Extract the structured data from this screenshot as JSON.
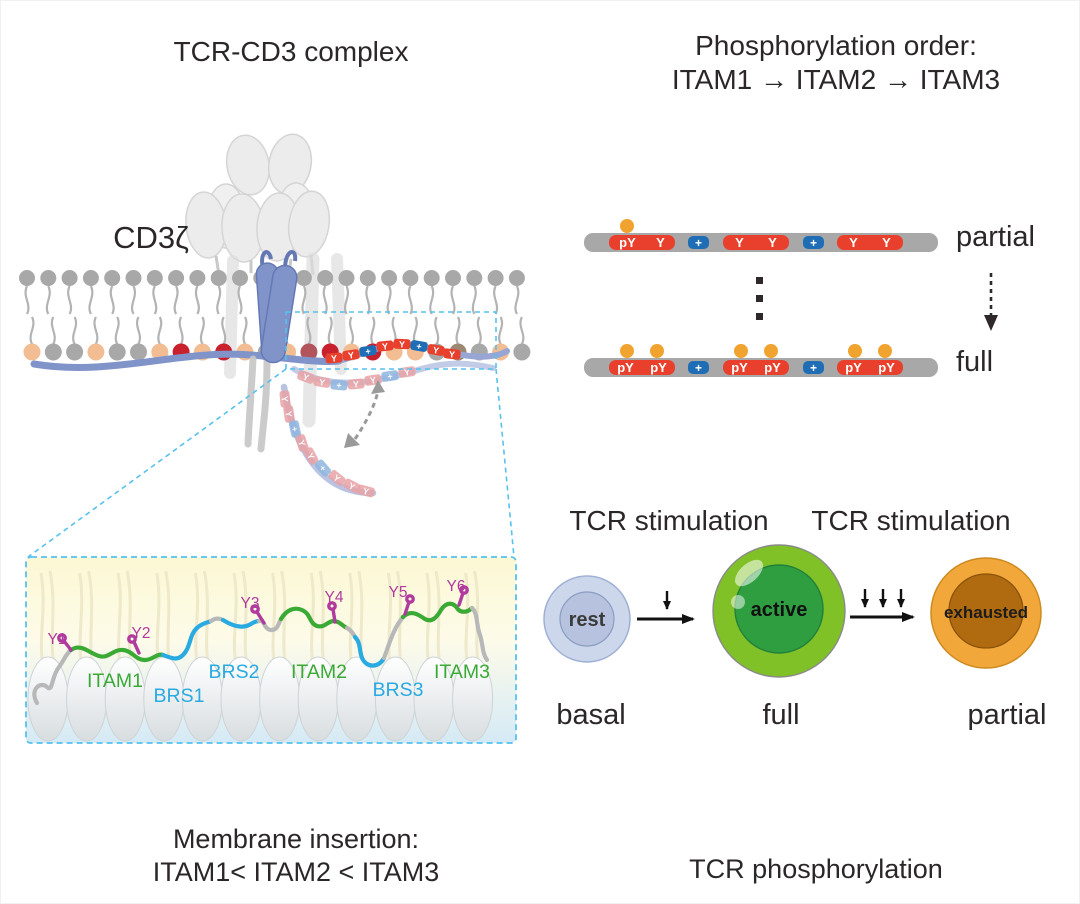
{
  "left_panel": {
    "title": "TCR-CD3 complex",
    "cd3_label": "CD3ζ",
    "inset_labels": {
      "Y1": "Y1",
      "Y2": "Y2",
      "Y3": "Y3",
      "Y4": "Y4",
      "Y5": "Y5",
      "Y6": "Y6",
      "ITAM1": "ITAM1",
      "ITAM2": "ITAM2",
      "ITAM3": "ITAM3",
      "BRS1": "BRS1",
      "BRS2": "BRS2",
      "BRS3": "BRS3"
    },
    "caption": {
      "line1": "Membrane insertion:",
      "line2": "ITAM1< ITAM2 < ITAM3"
    }
  },
  "right_panel": {
    "title": {
      "line1": "Phosphorylation order:",
      "line2": "ITAM1 → ITAM2 → ITAM3"
    },
    "bars": [
      {
        "id": "partial",
        "label": "partial",
        "plus_text": "+",
        "groups": [
          {
            "sites": [
              {
                "text": "pY",
                "dot": true
              },
              {
                "text": "Y",
                "dot": false
              }
            ]
          },
          {
            "sites": [
              {
                "text": "Y",
                "dot": false
              },
              {
                "text": "Y",
                "dot": false
              }
            ]
          },
          {
            "sites": [
              {
                "text": "Y",
                "dot": false
              },
              {
                "text": "Y",
                "dot": false
              }
            ]
          }
        ]
      },
      {
        "id": "full",
        "label": "full",
        "plus_text": "+",
        "groups": [
          {
            "sites": [
              {
                "text": "pY",
                "dot": true
              },
              {
                "text": "pY",
                "dot": true
              }
            ]
          },
          {
            "sites": [
              {
                "text": "pY",
                "dot": true
              },
              {
                "text": "pY",
                "dot": true
              }
            ]
          },
          {
            "sites": [
              {
                "text": "pY",
                "dot": true
              },
              {
                "text": "pY",
                "dot": true
              }
            ]
          }
        ]
      }
    ],
    "stimulation_labels": [
      "TCR stimulation",
      "TCR stimulation"
    ],
    "cells": [
      {
        "name": "rest",
        "state": "basal"
      },
      {
        "name": "active",
        "state": "full"
      },
      {
        "name": "exhausted",
        "state": "partial"
      }
    ],
    "caption": "TCR phosphorylation"
  },
  "glyphs": {
    "tyrosine": "Y",
    "plus": "+"
  },
  "colors": {
    "itam_red": "#e8402c",
    "basic_blue": "#1f6eb5",
    "phospho_orange": "#f0a32f",
    "bar_gray": "#a8a8a8",
    "itam_green": "#3aaa35",
    "brs_cyan": "#29aae1",
    "tyrosine_magenta": "#b03a9d",
    "membrane_blue": "#8194ca",
    "faded_pink": "#e8a2a6",
    "faded_blue": "#8fb5de",
    "rest_outer": "#ccd7ec",
    "rest_inner": "#b7c3de",
    "active_outer": "#7fc127",
    "active_inner": "#2f9e41",
    "exhausted_outer": "#f2a73b",
    "exhausted_inner": "#b06a10",
    "lipid_gray": "#a8a8a8",
    "lipid_peach": "#f2bd92",
    "lipid_red": "#c8202c"
  },
  "membrane": {
    "top_head_color": "#a8a8a8",
    "bottom_head_colors": [
      "#f2bd92",
      "#a8a8a8",
      "#a8a8a8",
      "#f2bd92",
      "#a8a8a8",
      "#a8a8a8",
      "#f2bd92",
      "#c8202c",
      "#f2bd92",
      "#c8202c",
      "#f2bd92",
      "#a8a8a8",
      "#f2bd92",
      "#b2545c",
      "#c8202c",
      "#f2bd92",
      "#c8202c",
      "#f2bd92",
      "#f2bd92",
      "#a8a8a8",
      "#9d8874",
      "#a8a8a8",
      "#f2bd92",
      "#a8a8a8"
    ]
  }
}
